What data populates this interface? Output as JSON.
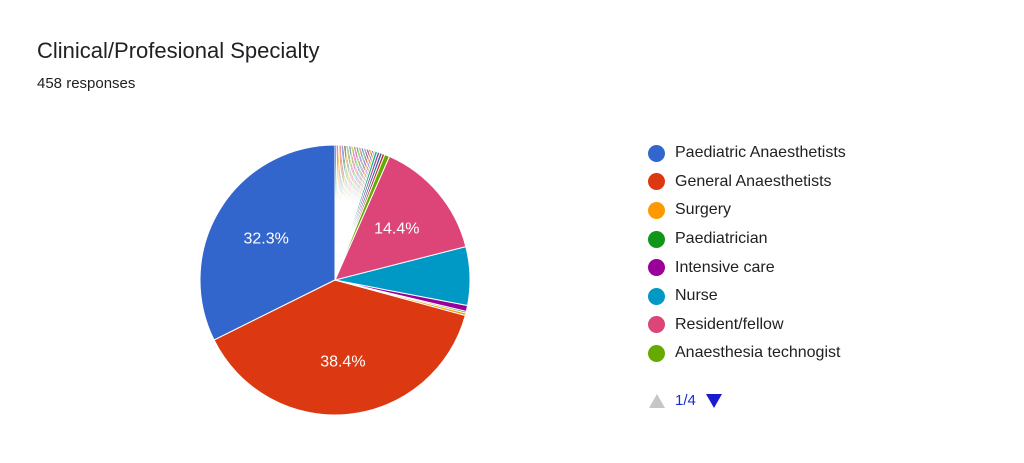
{
  "header": {
    "title": "Clinical/Profesional Specialty",
    "responses": "458 responses"
  },
  "chart_data": {
    "type": "pie",
    "title": "Clinical/Profesional Specialty",
    "total_responses": 458,
    "start_angle_deg": 90,
    "slices": [
      {
        "label": "Paediatric Anaesthetists",
        "percent": 32.3,
        "color": "#3366cc",
        "data_label": "32.3%"
      },
      {
        "label": "General Anaesthetists",
        "percent": 38.4,
        "color": "#dc3912",
        "data_label": "38.4%"
      },
      {
        "label": "Surgery",
        "percent": 0.3,
        "color": "#ff9900",
        "data_label": ""
      },
      {
        "label": "Paediatrician",
        "percent": 0.2,
        "color": "#109618",
        "data_label": ""
      },
      {
        "label": "Intensive care",
        "percent": 0.7,
        "color": "#990099",
        "data_label": ""
      },
      {
        "label": "Nurse",
        "percent": 7.0,
        "color": "#0099c6",
        "data_label": ""
      },
      {
        "label": "Resident/fellow",
        "percent": 14.4,
        "color": "#dd4477",
        "data_label": "14.4%"
      },
      {
        "label": "Anaesthesia technogist",
        "percent": 0.6,
        "color": "#66aa00",
        "data_label": ""
      },
      {
        "label": "",
        "percent": 0.3,
        "color": "#b82e2e",
        "data_label": ""
      },
      {
        "label": "",
        "percent": 0.3,
        "color": "#316395",
        "data_label": ""
      },
      {
        "label": "",
        "percent": 0.3,
        "color": "#994499",
        "data_label": ""
      },
      {
        "label": "",
        "percent": 0.3,
        "color": "#22aa99",
        "data_label": ""
      },
      {
        "label": "",
        "percent": 0.2,
        "color": "#aaaa11",
        "data_label": ""
      },
      {
        "label": "",
        "percent": 0.2,
        "color": "#6633cc",
        "data_label": ""
      },
      {
        "label": "",
        "percent": 0.2,
        "color": "#e67300",
        "data_label": ""
      },
      {
        "label": "",
        "percent": 0.2,
        "color": "#8b0707",
        "data_label": ""
      },
      {
        "label": "",
        "percent": 0.2,
        "color": "#651067",
        "data_label": ""
      },
      {
        "label": "",
        "percent": 0.2,
        "color": "#329262",
        "data_label": ""
      },
      {
        "label": "",
        "percent": 0.2,
        "color": "#5574a6",
        "data_label": ""
      },
      {
        "label": "",
        "percent": 0.2,
        "color": "#3b3eac",
        "data_label": ""
      },
      {
        "label": "",
        "percent": 0.2,
        "color": "#b77322",
        "data_label": ""
      },
      {
        "label": "",
        "percent": 0.2,
        "color": "#16d620",
        "data_label": ""
      },
      {
        "label": "",
        "percent": 0.2,
        "color": "#b91383",
        "data_label": ""
      },
      {
        "label": "",
        "percent": 0.2,
        "color": "#f4359e",
        "data_label": ""
      },
      {
        "label": "",
        "percent": 0.2,
        "color": "#9c5935",
        "data_label": ""
      },
      {
        "label": "",
        "percent": 0.2,
        "color": "#a9c413",
        "data_label": ""
      },
      {
        "label": "",
        "percent": 0.2,
        "color": "#2a778d",
        "data_label": ""
      },
      {
        "label": "",
        "percent": 0.2,
        "color": "#668d1c",
        "data_label": ""
      },
      {
        "label": "",
        "percent": 0.2,
        "color": "#bea413",
        "data_label": ""
      },
      {
        "label": "",
        "percent": 0.2,
        "color": "#0c5922",
        "data_label": ""
      },
      {
        "label": "",
        "percent": 0.2,
        "color": "#743411",
        "data_label": ""
      },
      {
        "label": "",
        "percent": 0.2,
        "color": "#3366cc",
        "data_label": ""
      },
      {
        "label": "",
        "percent": 0.2,
        "color": "#dc3912",
        "data_label": ""
      },
      {
        "label": "",
        "percent": 0.2,
        "color": "#ff9900",
        "data_label": ""
      },
      {
        "label": "",
        "percent": 0.2,
        "color": "#109618",
        "data_label": ""
      },
      {
        "label": "",
        "percent": 0.2,
        "color": "#990099",
        "data_label": ""
      }
    ],
    "legend_position": "right"
  },
  "legend": {
    "items": [
      {
        "label": "Paediatric Anaesthetists",
        "color": "#3366cc"
      },
      {
        "label": "General Anaesthetists",
        "color": "#dc3912"
      },
      {
        "label": "Surgery",
        "color": "#ff9900"
      },
      {
        "label": "Paediatrician",
        "color": "#109618"
      },
      {
        "label": "Intensive care",
        "color": "#990099"
      },
      {
        "label": "Nurse",
        "color": "#0099c6"
      },
      {
        "label": "Resident/fellow",
        "color": "#dd4477"
      },
      {
        "label": "Anaesthesia technogist",
        "color": "#66aa00"
      }
    ]
  },
  "pager": {
    "text": "1/4",
    "prev_icon": "triangle-up-icon",
    "next_icon": "triangle-down-icon",
    "prev_color": "#c6c6c6",
    "next_color": "#1a1ad0"
  }
}
